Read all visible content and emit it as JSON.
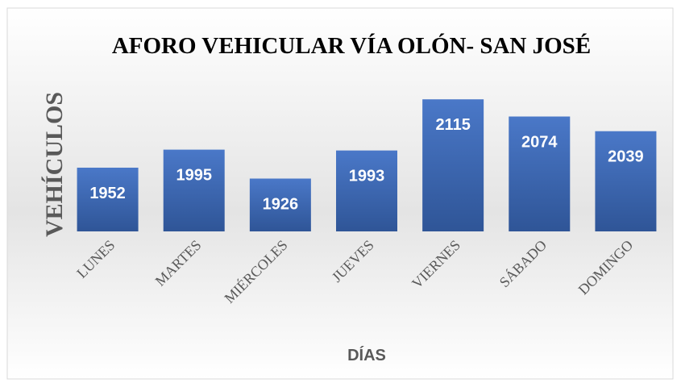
{
  "chart_data": {
    "type": "bar",
    "title": "AFORO VEHICULAR VÍA OLÓN- SAN JOSÉ",
    "x_label": "DÍAS",
    "y_label": "VEHÍCULOS",
    "categories": [
      "LUNES",
      "MARTES",
      "MIÉRCOLES",
      "JUEVES",
      "VIERNES",
      "SÁBADO",
      "DOMINGO"
    ],
    "values": [
      1952,
      1995,
      1926,
      1993,
      2115,
      2074,
      2039
    ],
    "color": "#4472c4",
    "ylim": [
      1800,
      2150
    ]
  }
}
